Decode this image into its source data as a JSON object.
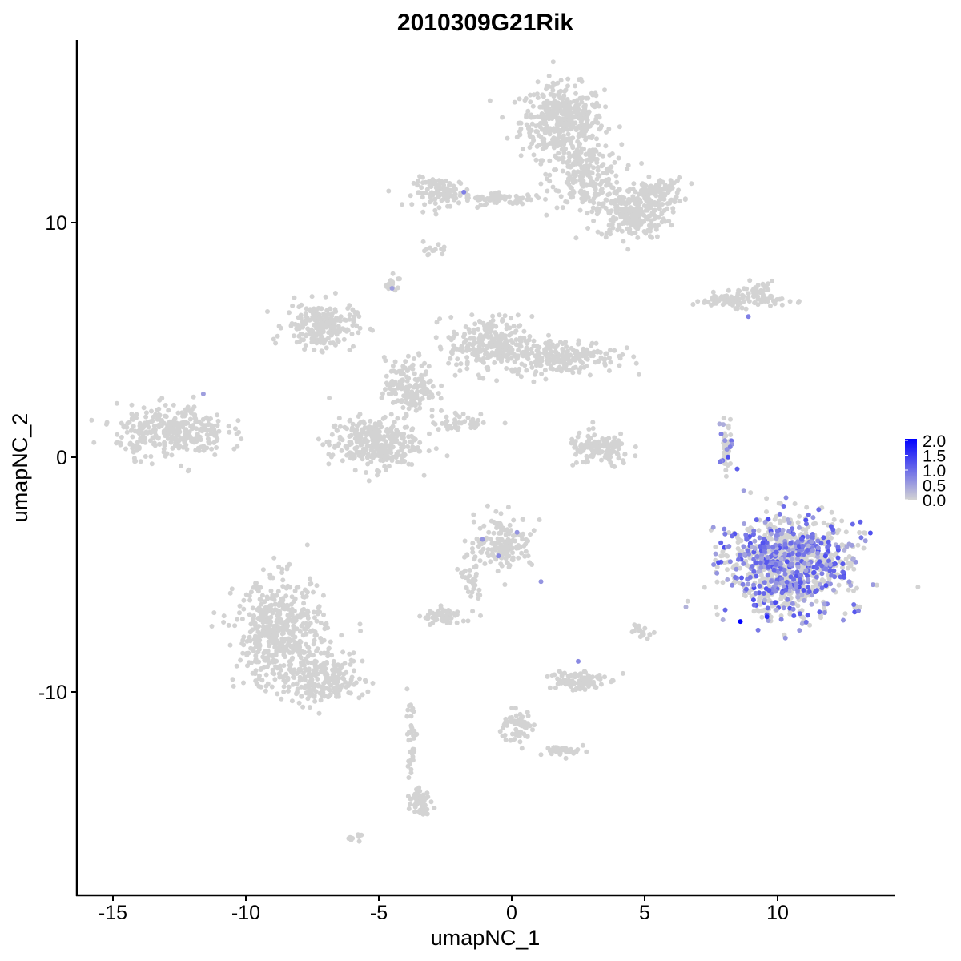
{
  "chart_data": {
    "type": "scatter",
    "title": "2010309G21Rik",
    "xlabel": "umapNC_1",
    "ylabel": "umapNC_2",
    "xlim": [
      -16.5,
      14.5
    ],
    "ylim": [
      -18.5,
      17.5
    ],
    "xticks": [
      -15,
      -10,
      -5,
      0,
      5,
      10
    ],
    "xtick_labels": [
      "-15",
      "-10",
      "-5",
      "0",
      "5",
      "10"
    ],
    "yticks": [
      -10,
      0,
      10
    ],
    "ytick_labels": [
      "-10",
      "0",
      "10"
    ],
    "grid": false,
    "legend": {
      "placement": "right",
      "type": "colorbar",
      "min": 0.0,
      "max": 2.0,
      "labels": [
        "0.0",
        "0.5",
        "1.0",
        "1.5",
        "2.0"
      ],
      "low_color": "#D3D3D3",
      "high_color": "#0000FF"
    },
    "clusters": [
      {
        "cx": 1.9,
        "cy": 14.3,
        "sx": 1.3,
        "sy": 1.3,
        "n": 420,
        "expr_frac": 0
      },
      {
        "cx": 2.8,
        "cy": 12.0,
        "sx": 1.1,
        "sy": 1.1,
        "n": 220,
        "expr_frac": 0
      },
      {
        "cx": 4.5,
        "cy": 10.4,
        "sx": 1.1,
        "sy": 0.9,
        "n": 260,
        "expr_frac": 0
      },
      {
        "cx": 5.5,
        "cy": 11.3,
        "sx": 0.8,
        "sy": 0.5,
        "n": 90,
        "expr_frac": 0
      },
      {
        "cx": -2.6,
        "cy": 11.3,
        "sx": 0.9,
        "sy": 0.5,
        "n": 110,
        "expr_frac": 0
      },
      {
        "cx": -0.3,
        "cy": 11.0,
        "sx": 1.3,
        "sy": 0.2,
        "n": 60,
        "expr_frac": 0
      },
      {
        "cx": 8.5,
        "cy": 6.7,
        "sx": 1.4,
        "sy": 0.25,
        "n": 100,
        "expr_frac": 0
      },
      {
        "cx": 9.3,
        "cy": 7.1,
        "sx": 0.5,
        "sy": 0.3,
        "n": 30,
        "expr_frac": 0
      },
      {
        "cx": -7.2,
        "cy": 5.6,
        "sx": 1.1,
        "sy": 0.8,
        "n": 220,
        "expr_frac": 0
      },
      {
        "cx": -0.8,
        "cy": 4.8,
        "sx": 1.3,
        "sy": 1.0,
        "n": 260,
        "expr_frac": 0
      },
      {
        "cx": 1.9,
        "cy": 4.3,
        "sx": 1.7,
        "sy": 0.6,
        "n": 220,
        "expr_frac": 0
      },
      {
        "cx": -5.2,
        "cy": 0.6,
        "sx": 1.4,
        "sy": 0.9,
        "n": 320,
        "expr_frac": 0
      },
      {
        "cx": -3.8,
        "cy": 3.0,
        "sx": 0.8,
        "sy": 1.0,
        "n": 160,
        "expr_frac": 0
      },
      {
        "cx": -1.8,
        "cy": 1.5,
        "sx": 1.0,
        "sy": 0.3,
        "n": 40,
        "expr_frac": 0
      },
      {
        "cx": -12.8,
        "cy": 1.1,
        "sx": 1.7,
        "sy": 0.9,
        "n": 320,
        "expr_frac": 0
      },
      {
        "cx": 3.3,
        "cy": 0.3,
        "sx": 1.0,
        "sy": 0.6,
        "n": 130,
        "expr_frac": 0
      },
      {
        "cx": 8.1,
        "cy": 0.5,
        "sx": 0.15,
        "sy": 0.8,
        "n": 40,
        "expr_frac": 0.5
      },
      {
        "cx": 10.4,
        "cy": -4.6,
        "sx": 1.9,
        "sy": 1.7,
        "n": 650,
        "expr_frac": 0.6
      },
      {
        "cx": -0.3,
        "cy": -3.6,
        "sx": 0.9,
        "sy": 0.9,
        "n": 160,
        "expr_frac": 0
      },
      {
        "cx": -2.6,
        "cy": -6.8,
        "sx": 0.6,
        "sy": 0.3,
        "n": 60,
        "expr_frac": 0
      },
      {
        "cx": -1.5,
        "cy": -5.3,
        "sx": 0.3,
        "sy": 1.0,
        "n": 40,
        "expr_frac": 0
      },
      {
        "cx": -8.7,
        "cy": -7.5,
        "sx": 1.4,
        "sy": 1.9,
        "n": 520,
        "expr_frac": 0
      },
      {
        "cx": -7.0,
        "cy": -9.5,
        "sx": 1.2,
        "sy": 0.8,
        "n": 200,
        "expr_frac": 0
      },
      {
        "cx": -3.8,
        "cy": -12.0,
        "sx": 0.2,
        "sy": 1.5,
        "n": 40,
        "expr_frac": 0
      },
      {
        "cx": -3.4,
        "cy": -14.6,
        "sx": 0.3,
        "sy": 0.5,
        "n": 60,
        "expr_frac": 0
      },
      {
        "cx": 2.4,
        "cy": -9.5,
        "sx": 0.9,
        "sy": 0.4,
        "n": 100,
        "expr_frac": 0
      },
      {
        "cx": 0.2,
        "cy": -11.5,
        "sx": 0.5,
        "sy": 0.6,
        "n": 60,
        "expr_frac": 0
      },
      {
        "cx": 2.2,
        "cy": -12.5,
        "sx": 0.8,
        "sy": 0.2,
        "n": 40,
        "expr_frac": 0
      },
      {
        "cx": 4.9,
        "cy": -7.5,
        "sx": 0.3,
        "sy": 0.2,
        "n": 20,
        "expr_frac": 0
      },
      {
        "cx": -2.9,
        "cy": 8.8,
        "sx": 0.3,
        "sy": 0.2,
        "n": 15,
        "expr_frac": 0
      },
      {
        "cx": -4.5,
        "cy": 7.4,
        "sx": 0.2,
        "sy": 0.3,
        "n": 20,
        "expr_frac": 0
      },
      {
        "cx": -6.0,
        "cy": -16.2,
        "sx": 0.3,
        "sy": 0.1,
        "n": 10,
        "expr_frac": 0
      }
    ],
    "expressing_cells": [
      {
        "x": -1.8,
        "y": 11.3,
        "value": 0.8
      },
      {
        "x": -4.5,
        "y": 7.2,
        "value": 0.5
      },
      {
        "x": 8.9,
        "y": 6.0,
        "value": 0.8
      },
      {
        "x": -11.6,
        "y": 2.7,
        "value": 0.5
      },
      {
        "x": 0.2,
        "y": -3.2,
        "value": 0.6
      },
      {
        "x": -1.1,
        "y": -3.5,
        "value": 0.6
      },
      {
        "x": -0.5,
        "y": -4.2,
        "value": 0.7
      },
      {
        "x": 1.1,
        "y": -5.3,
        "value": 0.6
      },
      {
        "x": 2.5,
        "y": -8.7,
        "value": 0.7
      },
      {
        "x": 8.6,
        "y": -7.0,
        "value": 2.0
      },
      {
        "x": 9.6,
        "y": -6.8,
        "value": 1.6
      }
    ]
  }
}
